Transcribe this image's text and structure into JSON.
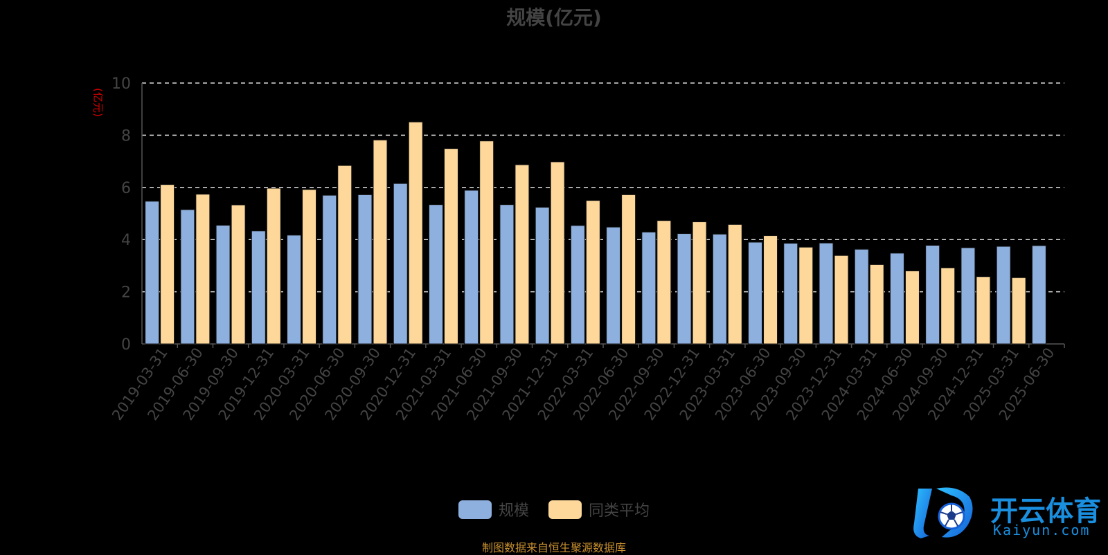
{
  "chart_data": {
    "type": "bar",
    "title": "规模(亿元)",
    "ylabel": "(亿元)",
    "ylim": [
      0,
      10
    ],
    "yticks": [
      0,
      2,
      4,
      6,
      8,
      10
    ],
    "grid": true,
    "legend_position": "bottom",
    "categories": [
      "2019-03-31",
      "2019-06-30",
      "2019-09-30",
      "2019-12-31",
      "2020-03-31",
      "2020-06-30",
      "2020-09-30",
      "2020-12-31",
      "2021-03-31",
      "2021-06-30",
      "2021-09-30",
      "2021-12-31",
      "2022-03-31",
      "2022-06-30",
      "2022-09-30",
      "2022-12-31",
      "2023-03-31",
      "2023-06-30",
      "2023-09-30",
      "2023-12-31",
      "2024-03-31",
      "2024-06-30",
      "2024-09-30",
      "2024-12-31",
      "2025-03-31",
      "2025-06-30"
    ],
    "series": [
      {
        "name": "规模",
        "color": "#8eb0de",
        "values": [
          5.47,
          5.15,
          4.55,
          4.33,
          4.17,
          5.7,
          5.72,
          6.15,
          5.34,
          5.89,
          5.34,
          5.24,
          4.54,
          4.48,
          4.29,
          4.23,
          4.21,
          3.9,
          3.86,
          3.87,
          3.63,
          3.48,
          3.78,
          3.69,
          3.74,
          3.77
        ]
      },
      {
        "name": "同类平均",
        "color": "#fdd89a",
        "values": [
          6.11,
          5.74,
          5.33,
          5.97,
          5.92,
          6.84,
          7.82,
          8.51,
          7.49,
          7.78,
          6.87,
          6.98,
          5.5,
          5.72,
          4.73,
          4.68,
          4.58,
          4.15,
          3.71,
          3.39,
          3.04,
          2.8,
          2.92,
          2.58,
          2.54,
          null
        ]
      }
    ]
  },
  "legend": [
    {
      "label": "规模",
      "color": "#8eb0de"
    },
    {
      "label": "同类平均",
      "color": "#fdd89a"
    }
  ],
  "source_note": "制图数据来自恒生聚源数据库",
  "watermark": {
    "brand_cn": "开云体育",
    "brand_en": "Kaiyun.com"
  }
}
